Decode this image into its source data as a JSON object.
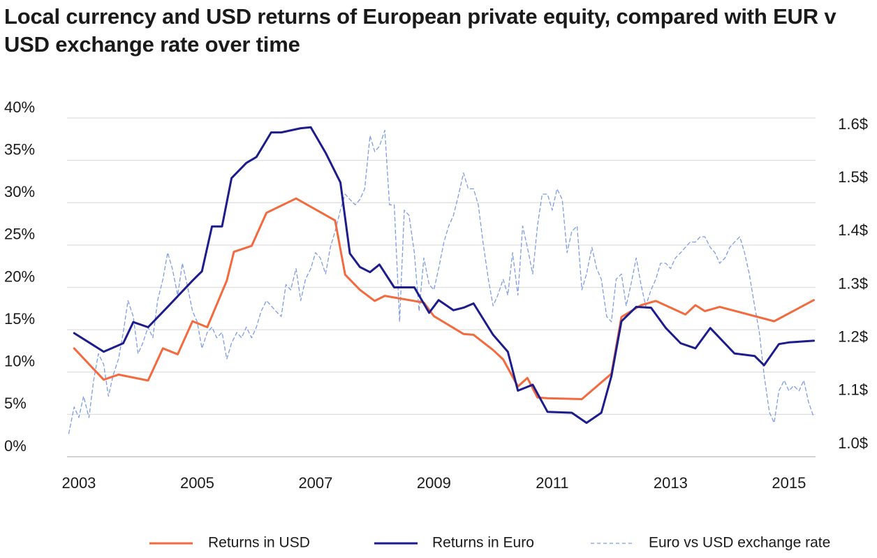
{
  "title": "Local currency and USD returns of European private equity, compared with EUR v USD exchange rate over time",
  "chart_data": {
    "type": "line",
    "title": "Local currency and USD returns of European private equity, compared with EUR v USD exchange rate over time",
    "xlabel": "",
    "ylabel_left": "",
    "ylabel_right": "",
    "xlim": [
      2002.8,
      2015.45
    ],
    "ylim_left": [
      0,
      40
    ],
    "ylim_right": [
      1.0,
      1.6
    ],
    "x_ticks": [
      2003,
      2005,
      2007,
      2009,
      2011,
      2013,
      2015
    ],
    "x_tick_labels": [
      "2003",
      "2005",
      "2007",
      "2009",
      "2011",
      "2013",
      "2015"
    ],
    "y_left_ticks": [
      0,
      5,
      10,
      15,
      20,
      25,
      30,
      35,
      40
    ],
    "y_left_tick_labels": [
      "0%",
      "5%",
      "10%",
      "15%",
      "20%",
      "25%",
      "30%",
      "35%",
      "40%"
    ],
    "y_right_ticks": [
      1.0,
      1.1,
      1.2,
      1.3,
      1.4,
      1.5,
      1.6
    ],
    "y_right_tick_labels": [
      "1.0$",
      "1.1$",
      "1.2$",
      "1.3$",
      "1.4$",
      "1.5$",
      "1.6$"
    ],
    "grid": true,
    "legend_position": "bottom",
    "series": [
      {
        "name": "Returns in USD",
        "axis": "left",
        "color": "#f26a3d",
        "style": "solid",
        "x": [
          2002.92,
          2003.42,
          2003.67,
          2004.17,
          2004.42,
          2004.67,
          2004.92,
          2005.17,
          2005.5,
          2005.62,
          2005.92,
          2006.17,
          2006.67,
          2007.33,
          2007.5,
          2007.75,
          2008.0,
          2008.17,
          2008.33,
          2008.83,
          2009.0,
          2009.5,
          2009.67,
          2010.0,
          2010.17,
          2010.42,
          2010.58,
          2010.75,
          2010.92,
          2011.5,
          2012.0,
          2012.17,
          2012.5,
          2012.75,
          2013.25,
          2013.42,
          2013.58,
          2013.83,
          2014.75,
          2015.42
        ],
        "y": [
          12.8,
          9.1,
          9.7,
          9.0,
          12.8,
          12.1,
          16.0,
          15.3,
          20.8,
          24.2,
          24.9,
          28.8,
          30.5,
          27.9,
          21.5,
          19.7,
          18.4,
          19.0,
          18.8,
          18.2,
          16.6,
          14.5,
          14.4,
          12.6,
          11.5,
          8.3,
          9.3,
          7.0,
          6.9,
          6.8,
          9.8,
          16.5,
          17.9,
          18.4,
          16.8,
          17.9,
          17.2,
          17.7,
          16.0,
          18.5
        ]
      },
      {
        "name": "Returns in Euro",
        "axis": "left",
        "color": "#1c1c8c",
        "style": "solid",
        "x": [
          2002.92,
          2003.42,
          2003.75,
          2003.92,
          2004.17,
          2004.5,
          2004.92,
          2005.08,
          2005.25,
          2005.42,
          2005.58,
          2005.83,
          2006.0,
          2006.25,
          2006.42,
          2006.75,
          2006.92,
          2007.17,
          2007.42,
          2007.58,
          2007.75,
          2007.92,
          2008.08,
          2008.33,
          2008.67,
          2008.92,
          2009.08,
          2009.33,
          2009.5,
          2009.67,
          2010.0,
          2010.25,
          2010.42,
          2010.67,
          2010.92,
          2011.33,
          2011.58,
          2011.83,
          2012.0,
          2012.17,
          2012.42,
          2012.67,
          2012.92,
          2013.17,
          2013.42,
          2013.67,
          2014.08,
          2014.42,
          2014.58,
          2014.83,
          2015.0,
          2015.42
        ],
        "y": [
          14.6,
          12.4,
          13.4,
          15.9,
          15.3,
          17.7,
          20.8,
          21.9,
          27.2,
          27.2,
          32.9,
          34.7,
          35.4,
          38.3,
          38.3,
          38.8,
          38.9,
          35.9,
          32.4,
          24.0,
          22.4,
          21.8,
          22.7,
          20.0,
          20.0,
          17.0,
          18.5,
          17.3,
          17.6,
          18.1,
          14.4,
          12.4,
          7.8,
          8.5,
          5.3,
          5.2,
          4.0,
          5.2,
          9.5,
          16.0,
          17.7,
          17.6,
          15.2,
          13.4,
          12.8,
          15.2,
          12.2,
          11.9,
          10.8,
          13.3,
          13.5,
          13.7
        ]
      },
      {
        "name": "Euro vs USD exchange rate",
        "axis": "right",
        "color": "#7c9ce6",
        "style": "dashed",
        "x": [
          2002.83,
          2002.92,
          2003.0,
          2003.08,
          2003.17,
          2003.25,
          2003.33,
          2003.42,
          2003.5,
          2003.58,
          2003.67,
          2003.75,
          2003.83,
          2003.92,
          2004.0,
          2004.08,
          2004.17,
          2004.25,
          2004.33,
          2004.42,
          2004.5,
          2004.58,
          2004.67,
          2004.75,
          2004.83,
          2004.92,
          2005.0,
          2005.08,
          2005.17,
          2005.25,
          2005.33,
          2005.42,
          2005.5,
          2005.58,
          2005.67,
          2005.75,
          2005.83,
          2005.92,
          2006.0,
          2006.08,
          2006.17,
          2006.25,
          2006.33,
          2006.42,
          2006.5,
          2006.58,
          2006.67,
          2006.75,
          2006.83,
          2006.92,
          2007.0,
          2007.08,
          2007.17,
          2007.25,
          2007.33,
          2007.42,
          2007.5,
          2007.58,
          2007.67,
          2007.75,
          2007.83,
          2007.92,
          2008.0,
          2008.08,
          2008.17,
          2008.25,
          2008.33,
          2008.42,
          2008.5,
          2008.58,
          2008.67,
          2008.75,
          2008.83,
          2008.92,
          2009.0,
          2009.08,
          2009.17,
          2009.25,
          2009.33,
          2009.42,
          2009.5,
          2009.58,
          2009.67,
          2009.75,
          2009.83,
          2009.92,
          2010.0,
          2010.08,
          2010.17,
          2010.25,
          2010.33,
          2010.42,
          2010.5,
          2010.58,
          2010.67,
          2010.75,
          2010.83,
          2010.92,
          2011.0,
          2011.08,
          2011.17,
          2011.25,
          2011.33,
          2011.42,
          2011.5,
          2011.58,
          2011.67,
          2011.75,
          2011.83,
          2011.92,
          2012.0,
          2012.08,
          2012.17,
          2012.25,
          2012.33,
          2012.42,
          2012.5,
          2012.58,
          2012.67,
          2012.75,
          2012.83,
          2012.92,
          2013.0,
          2013.08,
          2013.17,
          2013.25,
          2013.33,
          2013.42,
          2013.5,
          2013.58,
          2013.67,
          2013.75,
          2013.83,
          2013.92,
          2014.0,
          2014.08,
          2014.17,
          2014.25,
          2014.33,
          2014.42,
          2014.5,
          2014.58,
          2014.67,
          2014.75,
          2014.83,
          2014.92,
          2015.0,
          2015.08,
          2015.17,
          2015.25,
          2015.33,
          2015.42
        ],
        "y": [
          1.02,
          1.07,
          1.05,
          1.09,
          1.05,
          1.12,
          1.17,
          1.15,
          1.09,
          1.13,
          1.16,
          1.21,
          1.27,
          1.24,
          1.17,
          1.19,
          1.22,
          1.2,
          1.27,
          1.31,
          1.36,
          1.33,
          1.28,
          1.34,
          1.3,
          1.25,
          1.23,
          1.18,
          1.21,
          1.22,
          1.2,
          1.21,
          1.16,
          1.19,
          1.21,
          1.2,
          1.22,
          1.2,
          1.22,
          1.25,
          1.27,
          1.26,
          1.25,
          1.24,
          1.3,
          1.29,
          1.33,
          1.27,
          1.31,
          1.33,
          1.36,
          1.35,
          1.32,
          1.37,
          1.4,
          1.44,
          1.47,
          1.46,
          1.45,
          1.46,
          1.48,
          1.58,
          1.55,
          1.56,
          1.59,
          1.45,
          1.45,
          1.23,
          1.44,
          1.43,
          1.36,
          1.25,
          1.35,
          1.3,
          1.29,
          1.33,
          1.38,
          1.41,
          1.43,
          1.47,
          1.51,
          1.48,
          1.48,
          1.45,
          1.38,
          1.31,
          1.26,
          1.28,
          1.31,
          1.28,
          1.36,
          1.28,
          1.41,
          1.37,
          1.32,
          1.41,
          1.47,
          1.47,
          1.44,
          1.48,
          1.46,
          1.36,
          1.4,
          1.41,
          1.29,
          1.32,
          1.37,
          1.33,
          1.31,
          1.24,
          1.23,
          1.31,
          1.32,
          1.26,
          1.3,
          1.35,
          1.3,
          1.26,
          1.29,
          1.31,
          1.34,
          1.34,
          1.33,
          1.35,
          1.36,
          1.37,
          1.38,
          1.38,
          1.39,
          1.39,
          1.37,
          1.36,
          1.34,
          1.35,
          1.37,
          1.38,
          1.39,
          1.36,
          1.32,
          1.26,
          1.21,
          1.13,
          1.06,
          1.04,
          1.1,
          1.12,
          1.1,
          1.11,
          1.1,
          1.12,
          1.08,
          1.05
        ]
      }
    ]
  }
}
